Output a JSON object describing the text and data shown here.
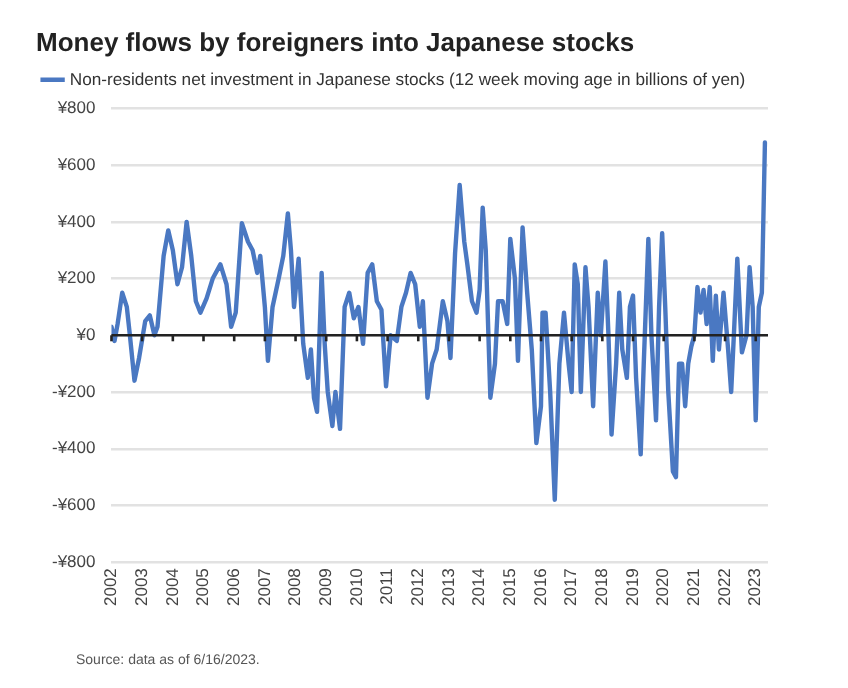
{
  "chart_data": {
    "type": "line",
    "title": "Money flows by foreigners into Japanese stocks",
    "annotations": [
      "Source: data as of 6/16/2023."
    ],
    "series": [
      {
        "name": "Non-residents net investment in Japanese stocks (12 week moving age in billions of yen)",
        "color": "#4a78c2",
        "x": [
          2002.0,
          2002.1,
          2002.2,
          2002.35,
          2002.5,
          2002.6,
          2002.75,
          2002.9,
          2003.1,
          2003.25,
          2003.4,
          2003.5,
          2003.7,
          2003.85,
          2004.0,
          2004.15,
          2004.3,
          2004.45,
          2004.6,
          2004.75,
          2004.9,
          2005.1,
          2005.3,
          2005.55,
          2005.75,
          2005.9,
          2006.05,
          2006.25,
          2006.45,
          2006.6,
          2006.75,
          2006.85,
          2007.0,
          2007.1,
          2007.25,
          2007.45,
          2007.6,
          2007.75,
          2007.85,
          2007.95,
          2008.1,
          2008.25,
          2008.4,
          2008.5,
          2008.6,
          2008.7,
          2008.85,
          2008.95,
          2009.05,
          2009.2,
          2009.3,
          2009.45,
          2009.6,
          2009.75,
          2009.9,
          2010.05,
          2010.2,
          2010.35,
          2010.5,
          2010.65,
          2010.8,
          2010.95,
          2011.1,
          2011.3,
          2011.45,
          2011.6,
          2011.75,
          2011.9,
          2012.05,
          2012.15,
          2012.3,
          2012.45,
          2012.6,
          2012.8,
          2012.95,
          2013.05,
          2013.2,
          2013.35,
          2013.5,
          2013.6,
          2013.75,
          2013.9,
          2014.0,
          2014.1,
          2014.2,
          2014.35,
          2014.5,
          2014.6,
          2014.75,
          2014.9,
          2015.0,
          2015.15,
          2015.25,
          2015.4,
          2015.55,
          2015.7,
          2015.85,
          2016.0,
          2016.05,
          2016.15,
          2016.3,
          2016.45,
          2016.6,
          2016.75,
          2016.9,
          2017.0,
          2017.1,
          2017.2,
          2017.3,
          2017.45,
          2017.55,
          2017.7,
          2017.85,
          2017.95,
          2018.1,
          2018.2,
          2018.3,
          2018.45,
          2018.55,
          2018.65,
          2018.8,
          2018.9,
          2019.0,
          2019.1,
          2019.25,
          2019.35,
          2019.5,
          2019.6,
          2019.75,
          2019.85,
          2019.95,
          2020.05,
          2020.15,
          2020.3,
          2020.4,
          2020.5,
          2020.6,
          2020.7,
          2020.8,
          2020.9,
          2021.0,
          2021.1,
          2021.2,
          2021.3,
          2021.4,
          2021.5,
          2021.6,
          2021.7,
          2021.8,
          2021.95,
          2022.1,
          2022.2,
          2022.3,
          2022.4,
          2022.55,
          2022.7,
          2022.8,
          2022.9,
          2023.0,
          2023.1,
          2023.2,
          2023.3
        ],
        "values": [
          30,
          -20,
          40,
          150,
          100,
          0,
          -160,
          -80,
          50,
          70,
          0,
          30,
          280,
          370,
          300,
          180,
          240,
          400,
          280,
          120,
          80,
          130,
          200,
          250,
          180,
          30,
          80,
          395,
          330,
          300,
          220,
          280,
          100,
          -90,
          100,
          200,
          280,
          430,
          300,
          100,
          270,
          -30,
          -150,
          -50,
          -220,
          -270,
          220,
          -30,
          -200,
          -320,
          -200,
          -330,
          100,
          150,
          60,
          100,
          -30,
          220,
          250,
          120,
          90,
          -180,
          0,
          -20,
          100,
          150,
          220,
          180,
          30,
          120,
          -220,
          -100,
          -50,
          120,
          50,
          -80,
          290,
          530,
          330,
          250,
          120,
          80,
          160,
          450,
          300,
          -220,
          -100,
          120,
          120,
          40,
          340,
          200,
          -90,
          380,
          150,
          -50,
          -380,
          -250,
          80,
          80,
          -200,
          -580,
          -100,
          80,
          -100,
          -200,
          250,
          180,
          -200,
          240,
          100,
          -250,
          150,
          0,
          260,
          0,
          -350,
          -100,
          150,
          -50,
          -150,
          100,
          140,
          -150,
          -420,
          -100,
          340,
          0,
          -300,
          100,
          360,
          100,
          -200,
          -480,
          -500,
          -100,
          -100,
          -250,
          -100,
          -40,
          0,
          170,
          80,
          160,
          40,
          170,
          -90,
          140,
          -50,
          150,
          -50,
          -200,
          30,
          270,
          -60,
          0,
          240,
          100,
          -300,
          100,
          150,
          680
        ]
      }
    ],
    "xlim": [
      2002,
      2023.4
    ],
    "xticks": [
      2002,
      2003,
      2004,
      2005,
      2006,
      2007,
      2008,
      2009,
      2010,
      2011,
      2012,
      2013,
      2014,
      2015,
      2016,
      2017,
      2018,
      2019,
      2020,
      2021,
      2022,
      2023
    ],
    "ylim": [
      -800,
      800
    ],
    "yticks": [
      {
        "value": -800,
        "label": "-¥800"
      },
      {
        "value": -600,
        "label": "-¥600"
      },
      {
        "value": -400,
        "label": "-¥400"
      },
      {
        "value": -200,
        "label": "-¥200"
      },
      {
        "value": 0,
        "label": "¥0"
      },
      {
        "value": 200,
        "label": "¥200"
      },
      {
        "value": 400,
        "label": "¥400"
      },
      {
        "value": 600,
        "label": "¥600"
      },
      {
        "value": 800,
        "label": "¥800"
      }
    ],
    "ref_lines": [
      {
        "axis": "y",
        "value": 0,
        "color": "#222222"
      }
    ],
    "grid": "y",
    "legend": "top left",
    "marker": "none",
    "line_style": "solid"
  }
}
